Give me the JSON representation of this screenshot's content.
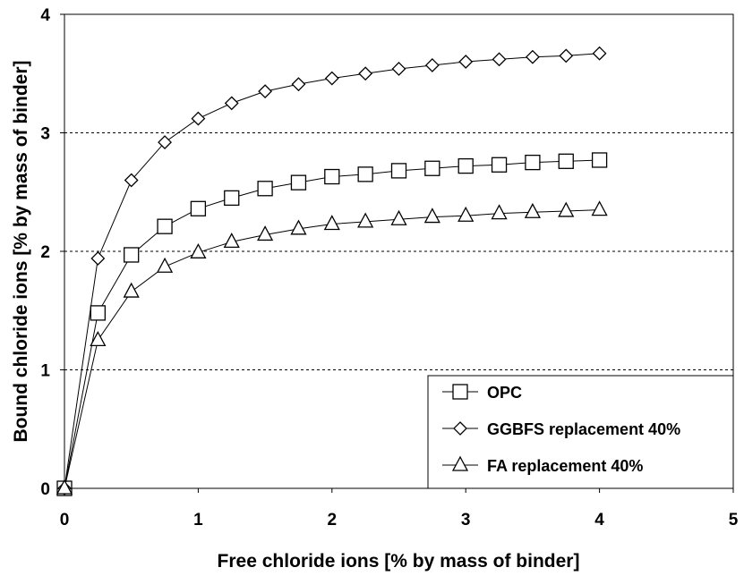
{
  "chart_data": {
    "type": "line",
    "xlabel": "Free chloride ions [% by mass of binder]",
    "ylabel": "Bound chloride ions [% by mass of binder]",
    "xlim": [
      0,
      5
    ],
    "ylim": [
      0,
      4
    ],
    "x_ticks": [
      "0",
      "1",
      "2",
      "3",
      "4",
      "5"
    ],
    "y_ticks": [
      "0",
      "1",
      "2",
      "3",
      "4"
    ],
    "grid": "horizontal dashed",
    "legend_placement": "bottom-right",
    "x": [
      0,
      0.25,
      0.5,
      0.75,
      1,
      1.25,
      1.5,
      1.75,
      2,
      2.25,
      2.5,
      2.75,
      3,
      3.25,
      3.5,
      3.75,
      4
    ],
    "series": [
      {
        "name": "OPC",
        "marker": "square",
        "values": [
          0,
          1.48,
          1.97,
          2.21,
          2.36,
          2.45,
          2.53,
          2.58,
          2.63,
          2.65,
          2.68,
          2.7,
          2.72,
          2.73,
          2.75,
          2.76,
          2.77
        ]
      },
      {
        "name": "GGBFS replacement 40%",
        "marker": "diamond",
        "values": [
          0,
          1.94,
          2.6,
          2.92,
          3.12,
          3.25,
          3.35,
          3.41,
          3.46,
          3.5,
          3.54,
          3.57,
          3.6,
          3.62,
          3.64,
          3.65,
          3.67
        ]
      },
      {
        "name": "FA replacement 40%",
        "marker": "triangle",
        "values": [
          0,
          1.25,
          1.66,
          1.87,
          1.99,
          2.08,
          2.14,
          2.19,
          2.23,
          2.25,
          2.27,
          2.29,
          2.3,
          2.32,
          2.33,
          2.34,
          2.35
        ]
      }
    ]
  }
}
